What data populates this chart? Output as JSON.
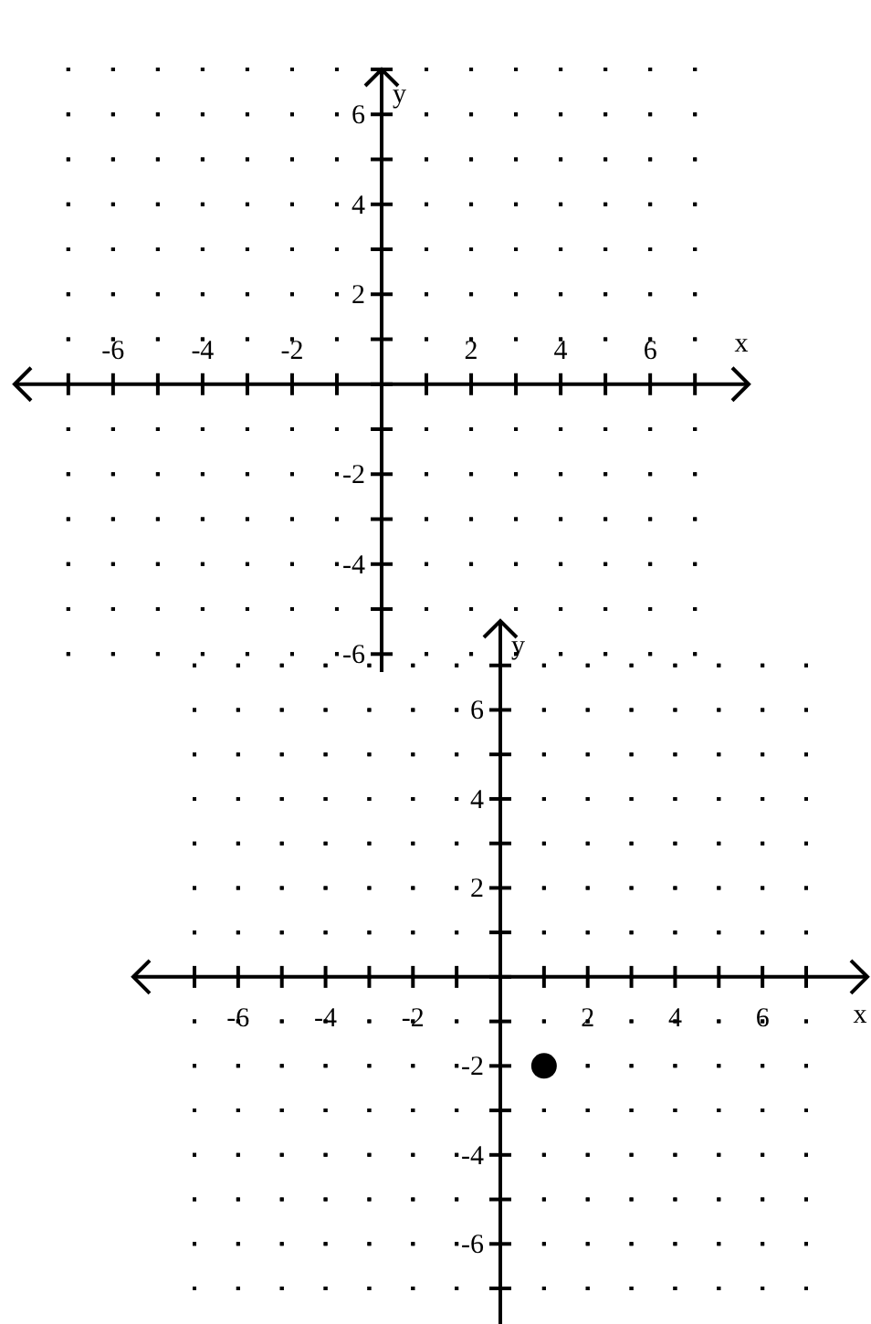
{
  "chart_data": [
    {
      "type": "scatter",
      "xlabel": "x",
      "ylabel": "y",
      "xlim": [
        -8.2,
        8.2
      ],
      "ylim": [
        -6.4,
        7
      ],
      "grid": true,
      "xticks": [
        {
          "value": -7,
          "label": null
        },
        -6,
        {
          "value": -5,
          "label": null
        },
        -4,
        {
          "value": -3,
          "label": null
        },
        -2,
        {
          "value": -1,
          "label": null
        },
        {
          "value": 0,
          "label": null
        },
        {
          "value": 1,
          "label": null
        },
        2,
        {
          "value": 3,
          "label": null
        },
        4,
        {
          "value": 5,
          "label": null
        },
        6,
        {
          "value": 7,
          "label": null
        }
      ],
      "yticks": [
        -6,
        {
          "value": -5,
          "label": null
        },
        -4,
        {
          "value": -3,
          "label": null
        },
        -2,
        {
          "value": -1,
          "label": null
        },
        {
          "value": 0,
          "label": null
        },
        {
          "value": 1,
          "label": null
        },
        2,
        {
          "value": 3,
          "label": null
        },
        4,
        {
          "value": 5,
          "label": null
        },
        6,
        {
          "value": 7,
          "label": null
        }
      ]
    },
    {
      "type": "scatter",
      "xlabel": "x",
      "ylabel": "y",
      "xlim": [
        -8.4,
        8.4
      ],
      "ylim": [
        -7.8,
        8
      ],
      "grid": true,
      "marker": "circle",
      "xticks": [
        {
          "value": -7,
          "label": null
        },
        -6,
        {
          "value": -5,
          "label": null
        },
        -4,
        {
          "value": -3,
          "label": null
        },
        -2,
        {
          "value": -1,
          "label": null
        },
        {
          "value": 0,
          "label": null
        },
        {
          "value": 1,
          "label": null
        },
        2,
        {
          "value": 3,
          "label": null
        },
        4,
        {
          "value": 5,
          "label": null
        },
        6,
        {
          "value": 7,
          "label": null
        }
      ],
      "yticks": [
        {
          "value": -7,
          "label": null
        },
        -6,
        {
          "value": -5,
          "label": null
        },
        -4,
        {
          "value": -3,
          "label": null
        },
        -2,
        {
          "value": -1,
          "label": null
        },
        {
          "value": 0,
          "label": null
        },
        {
          "value": 1,
          "label": null
        },
        2,
        {
          "value": 3,
          "label": null
        },
        4,
        {
          "value": 5,
          "label": null
        },
        6,
        {
          "value": 7,
          "label": null
        }
      ],
      "series": [
        {
          "color": "#000000",
          "x": [
            1
          ],
          "values": [
            -2
          ]
        }
      ]
    }
  ]
}
